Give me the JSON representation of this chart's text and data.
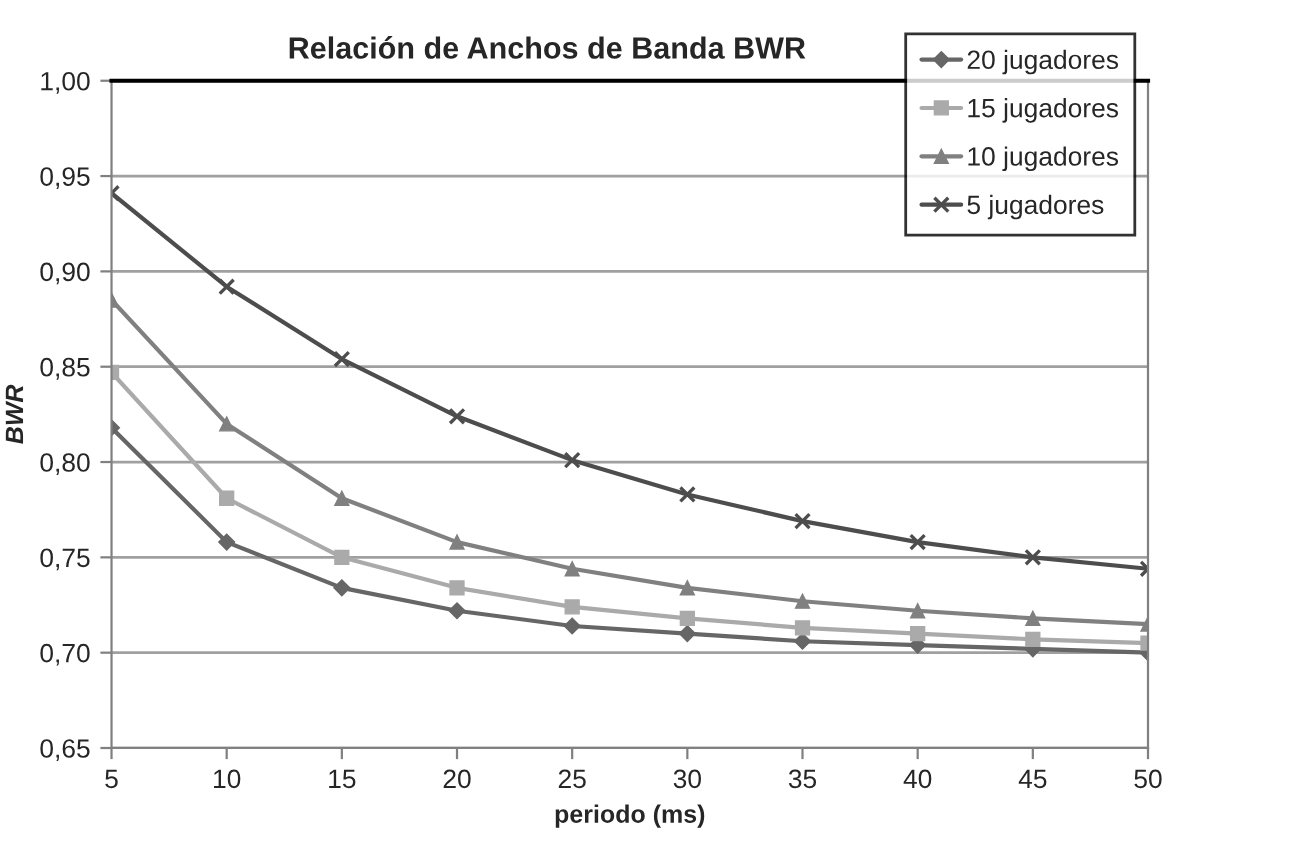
{
  "chart_data": {
    "type": "line",
    "title": "Relación de Anchos de Banda BWR",
    "xlabel": "periodo (ms)",
    "ylabel": "BWR",
    "x": [
      5,
      10,
      15,
      20,
      25,
      30,
      35,
      40,
      45,
      50
    ],
    "series": [
      {
        "name": "20 jugadores",
        "color": "#666666",
        "marker": "diamond",
        "values": [
          0.818,
          0.758,
          0.734,
          0.722,
          0.714,
          0.71,
          0.706,
          0.704,
          0.702,
          0.7
        ]
      },
      {
        "name": "15 jugadores",
        "color": "#aaaaaa",
        "marker": "square",
        "values": [
          0.847,
          0.781,
          0.75,
          0.734,
          0.724,
          0.718,
          0.713,
          0.71,
          0.707,
          0.705
        ]
      },
      {
        "name": "10 jugadores",
        "color": "#808080",
        "marker": "triangle",
        "values": [
          0.885,
          0.82,
          0.781,
          0.758,
          0.744,
          0.734,
          0.727,
          0.722,
          0.718,
          0.715
        ]
      },
      {
        "name": "5 jugadores",
        "color": "#4d4d4d",
        "marker": "cross",
        "values": [
          0.941,
          0.892,
          0.854,
          0.824,
          0.801,
          0.783,
          0.769,
          0.758,
          0.75,
          0.744
        ]
      }
    ],
    "xlim": [
      5,
      50
    ],
    "xticks": [
      5,
      10,
      15,
      20,
      25,
      30,
      35,
      40,
      45,
      50
    ],
    "ylim": [
      0.65,
      1.0
    ],
    "yticks": [
      {
        "value": 0.65,
        "label": "0,65"
      },
      {
        "value": 0.7,
        "label": "0,70"
      },
      {
        "value": 0.75,
        "label": "0,75"
      },
      {
        "value": 0.8,
        "label": "0,80"
      },
      {
        "value": 0.85,
        "label": "0,85"
      },
      {
        "value": 0.9,
        "label": "0,90"
      },
      {
        "value": 0.95,
        "label": "0,95"
      },
      {
        "value": 1.0,
        "label": "1,00"
      }
    ],
    "grid": "y",
    "legend": "top right",
    "line_style": "solid"
  }
}
